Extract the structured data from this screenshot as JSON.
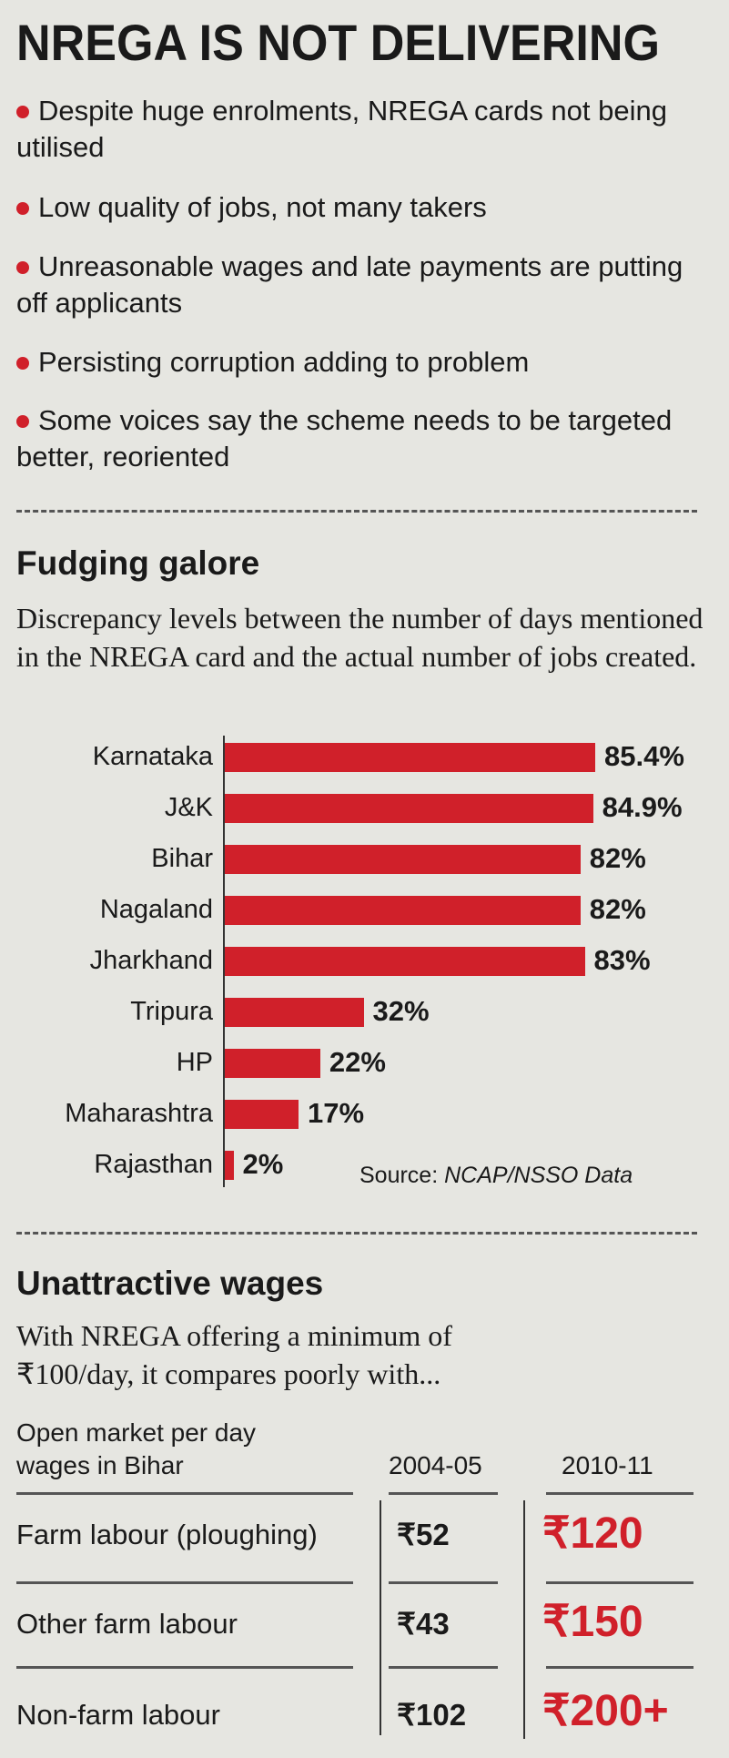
{
  "title": "NREGA IS NOT DELIVERING",
  "bullets": [
    "Despite huge enrolments, NREGA cards not being utilised",
    "Low quality of jobs, not many takers",
    "Unreasonable wages and late payments are putting off applicants",
    "Persisting corruption adding to problem",
    "Some voices say the scheme needs to be targeted better, reoriented"
  ],
  "colors": {
    "accent": "#d0202a",
    "background": "#e6e6e1"
  },
  "section1": {
    "heading": "Fudging galore",
    "description": "Discrepancy levels between the number of days mentioned in the NREGA card and the actual number of jobs created.",
    "source_prefix": "Source: ",
    "source_name": "NCAP/NSSO Data"
  },
  "chart_data": {
    "type": "bar",
    "orientation": "horizontal",
    "categories": [
      "Karnataka",
      "J&K",
      "Bihar",
      "Nagaland",
      "Jharkhand",
      "Tripura",
      "HP",
      "Maharashtra",
      "Rajasthan"
    ],
    "values": [
      85.4,
      84.9,
      82,
      82,
      83,
      32,
      22,
      17,
      2
    ],
    "data_labels": [
      "85.4%",
      "84.9%",
      "82%",
      "82%",
      "83%",
      "32%",
      "22%",
      "17%",
      "2%"
    ],
    "unit": "%",
    "grid": false,
    "xlim": [
      0,
      100
    ],
    "bar_color": "#d0202a"
  },
  "section2": {
    "heading": "Unattractive wages",
    "description": "With NREGA offering a minimum of ₹100/day, it compares poorly with...",
    "table": {
      "header_line1": "Open market per day",
      "header_line2": "wages in Bihar",
      "columns": [
        "2004-05",
        "2010-11"
      ],
      "rows": [
        {
          "label": "Farm labour (ploughing)",
          "v2004": "₹52",
          "v2010": "₹120"
        },
        {
          "label": "Other farm labour",
          "v2004": "₹43",
          "v2010": "₹150"
        },
        {
          "label": "Non-farm labour",
          "v2004": "₹102",
          "v2010": "₹200+"
        }
      ]
    }
  }
}
